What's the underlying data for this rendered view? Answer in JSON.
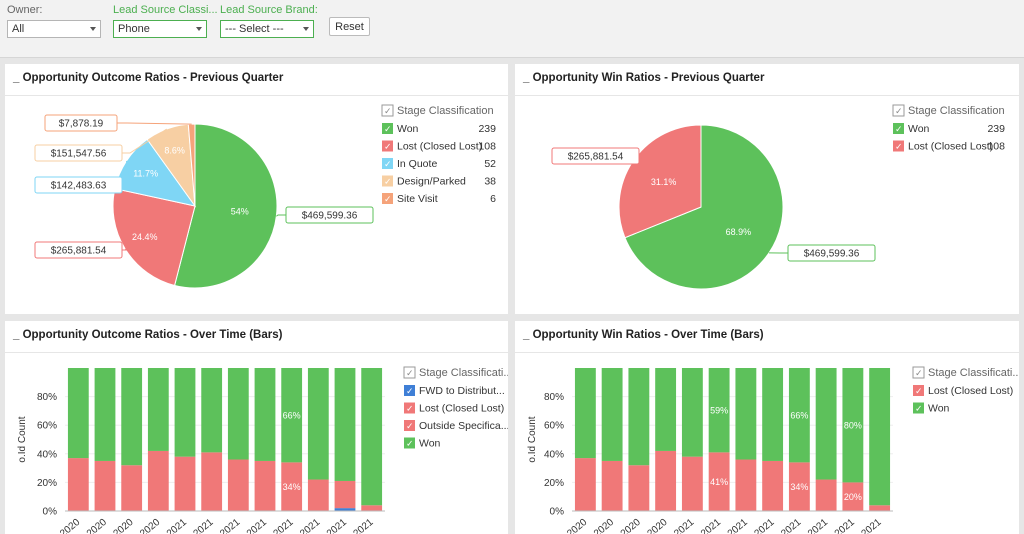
{
  "filters": {
    "owner": {
      "label": "Owner:",
      "value": "All"
    },
    "lead_source": {
      "label": "Lead Source Classi...",
      "value": "Phone"
    },
    "brand": {
      "label": "Lead Source Brand:",
      "value": "--- Select ---"
    },
    "reset_label": "Reset"
  },
  "panels": {
    "p1": {
      "title": "_ Opportunity Outcome Ratios - Previous Quarter"
    },
    "p2": {
      "title": "_ Opportunity Win Ratios - Previous Quarter"
    },
    "p3": {
      "title": "_ Opportunity Outcome Ratios - Over Time (Bars)"
    },
    "p4": {
      "title": "_ Opportunity Win Ratios - Over Time (Bars)"
    }
  },
  "colors": {
    "won": "#5dc15b",
    "lost": "#f07878",
    "inquote": "#7fd6f5",
    "design": "#f7cfa3",
    "site": "#f5a37a",
    "fwd": "#3f7fd6"
  },
  "chart_data": [
    {
      "type": "pie",
      "legend_title": "Stage Classification",
      "slices": [
        {
          "name": "Won",
          "count": 239,
          "percent": 54,
          "pct_label": "54%",
          "amount": "$469,599.36",
          "color": "#5dc15b"
        },
        {
          "name": "Lost (Closed Lost)",
          "count": 108,
          "percent": 24.4,
          "pct_label": "24.4%",
          "amount": "$265,881.54",
          "color": "#f07878"
        },
        {
          "name": "In Quote",
          "count": 52,
          "percent": 11.7,
          "pct_label": "11.7%",
          "amount": "$142,483.63",
          "color": "#7fd6f5"
        },
        {
          "name": "Design/Parked",
          "count": 38,
          "percent": 8.6,
          "pct_label": "8.6%",
          "amount": "$151,547.56",
          "color": "#f7cfa3"
        },
        {
          "name": "Site Visit",
          "count": 6,
          "percent": 1.3,
          "pct_label": "",
          "amount": "$7,878.19",
          "color": "#f5a37a"
        }
      ]
    },
    {
      "type": "pie",
      "legend_title": "Stage Classification",
      "slices": [
        {
          "name": "Won",
          "count": 239,
          "percent": 68.9,
          "pct_label": "68.9%",
          "amount": "$469,599.36",
          "color": "#5dc15b"
        },
        {
          "name": "Lost (Closed Lost)",
          "count": 108,
          "percent": 31.1,
          "pct_label": "31.1%",
          "amount": "$265,881.54",
          "color": "#f07878"
        }
      ]
    },
    {
      "type": "bar",
      "stacked": true,
      "ylabel": "o.Id Count",
      "yticks": [
        "0%",
        "20%",
        "40%",
        "60%",
        "80%"
      ],
      "ylim": [
        0,
        100
      ],
      "categories": [
        "2020",
        "2020",
        "2020",
        "2020",
        "2021",
        "2021",
        "2021",
        "2021",
        "2021",
        "2021",
        "2021",
        "2021"
      ],
      "legend_title": "Stage Classificati...",
      "legend": [
        {
          "name": "FWD to Distribut...",
          "color": "#3f7fd6"
        },
        {
          "name": "Lost (Closed Lost)",
          "color": "#f07878"
        },
        {
          "name": "Outside Specifica...",
          "color": "#f07878"
        },
        {
          "name": "Won",
          "color": "#5dc15b"
        }
      ],
      "series": [
        {
          "name": "FWD to Distribut...",
          "color": "#3f7fd6",
          "values": [
            0,
            0,
            0,
            0,
            0,
            0,
            0,
            0,
            0,
            0,
            2,
            0
          ]
        },
        {
          "name": "Lost (Closed Lost)",
          "color": "#f07878",
          "values": [
            37,
            35,
            32,
            42,
            38,
            41,
            36,
            35,
            34,
            22,
            19,
            4
          ]
        },
        {
          "name": "Won",
          "color": "#5dc15b",
          "values": [
            63,
            65,
            68,
            58,
            62,
            59,
            64,
            65,
            66,
            78,
            79,
            96
          ]
        }
      ],
      "data_labels": [
        {
          "index": 8,
          "series": "Won",
          "text": "66%"
        },
        {
          "index": 8,
          "series": "Lost (Closed Lost)",
          "text": "34%"
        }
      ]
    },
    {
      "type": "bar",
      "stacked": true,
      "ylabel": "o.Id Count",
      "yticks": [
        "0%",
        "20%",
        "40%",
        "60%",
        "80%"
      ],
      "ylim": [
        0,
        100
      ],
      "categories": [
        "2020",
        "2020",
        "2020",
        "2020",
        "2021",
        "2021",
        "2021",
        "2021",
        "2021",
        "2021",
        ".l 2021",
        "2021"
      ],
      "legend_title": "Stage Classificati...",
      "legend": [
        {
          "name": "Lost (Closed Lost)",
          "color": "#f07878"
        },
        {
          "name": "Won",
          "color": "#5dc15b"
        }
      ],
      "series": [
        {
          "name": "Lost (Closed Lost)",
          "color": "#f07878",
          "values": [
            37,
            35,
            32,
            42,
            38,
            41,
            36,
            35,
            34,
            22,
            20,
            4
          ]
        },
        {
          "name": "Won",
          "color": "#5dc15b",
          "values": [
            63,
            65,
            68,
            58,
            62,
            59,
            64,
            65,
            66,
            78,
            80,
            96
          ]
        }
      ],
      "data_labels": [
        {
          "index": 5,
          "series": "Won",
          "text": "59%"
        },
        {
          "index": 5,
          "series": "Lost (Closed Lost)",
          "text": "41%"
        },
        {
          "index": 8,
          "series": "Won",
          "text": "66%"
        },
        {
          "index": 8,
          "series": "Lost (Closed Lost)",
          "text": "34%"
        },
        {
          "index": 10,
          "series": "Won",
          "text": "80%"
        },
        {
          "index": 10,
          "series": "Lost (Closed Lost)",
          "text": "20%"
        }
      ]
    }
  ]
}
